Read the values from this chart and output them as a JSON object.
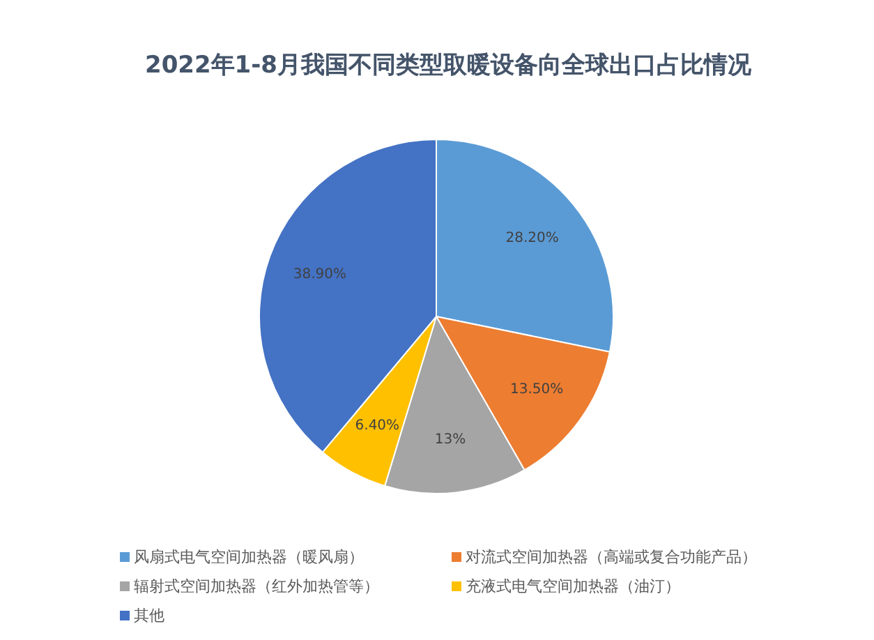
{
  "chart_data": {
    "type": "pie",
    "title": "2022年1-8月我国不同类型取暖设备向全球出口占比情况",
    "categories": [
      "风扇式电气空间加热器（暖风扇）",
      "对流式空间加热器（高端或复合功能产品）",
      "辐射式空间加热器（红外加热管等）",
      "充液式电气空间加热器（油汀）",
      "其他"
    ],
    "values": [
      28.2,
      13.5,
      13,
      6.4,
      38.9
    ],
    "colors": [
      "#5b9bd5",
      "#ed7d31",
      "#a5a5a5",
      "#ffc000",
      "#4472c4"
    ],
    "value_labels": [
      "28.20%",
      "13.50%",
      "13%",
      "6.40%",
      "38.90%"
    ],
    "legend": "bottom"
  }
}
